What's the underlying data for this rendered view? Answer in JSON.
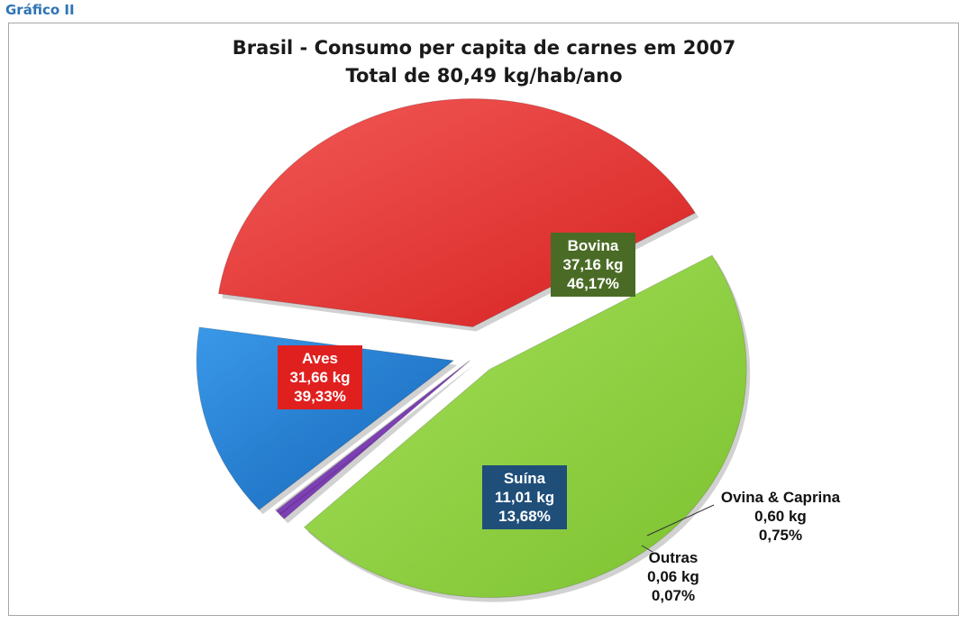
{
  "caption": "Gráfico II",
  "chart_data": {
    "type": "pie",
    "title": "Brasil - Consumo per capita de carnes em 2007",
    "subtitle": "Total de 80,49 kg/hab/ano",
    "slices": [
      {
        "name": "Bovina",
        "kg_label": "37,16 kg",
        "pct_label": "46,17%",
        "value": 37.16,
        "percent": 46.17,
        "color": "#8fd13f",
        "label_bg": "#4a6b25"
      },
      {
        "name": "Ovina & Caprina",
        "kg_label": "0,60 kg",
        "pct_label": "0,75%",
        "value": 0.6,
        "percent": 0.75,
        "color": "#7b3fb0",
        "label_bg": ""
      },
      {
        "name": "Outras",
        "kg_label": "0,06 kg",
        "pct_label": "0,07%",
        "value": 0.06,
        "percent": 0.07,
        "color": "#d9d9d9",
        "label_bg": ""
      },
      {
        "name": "Suína",
        "kg_label": "11,01 kg",
        "pct_label": "13,68%",
        "value": 11.01,
        "percent": 13.68,
        "color": "#1c7fd6",
        "label_bg": "#1f4e79"
      },
      {
        "name": "Aves",
        "kg_label": "31,66 kg",
        "pct_label": "39,33%",
        "value": 31.66,
        "percent": 39.33,
        "color": "#e8302e",
        "label_bg": "#e0201f"
      }
    ]
  }
}
